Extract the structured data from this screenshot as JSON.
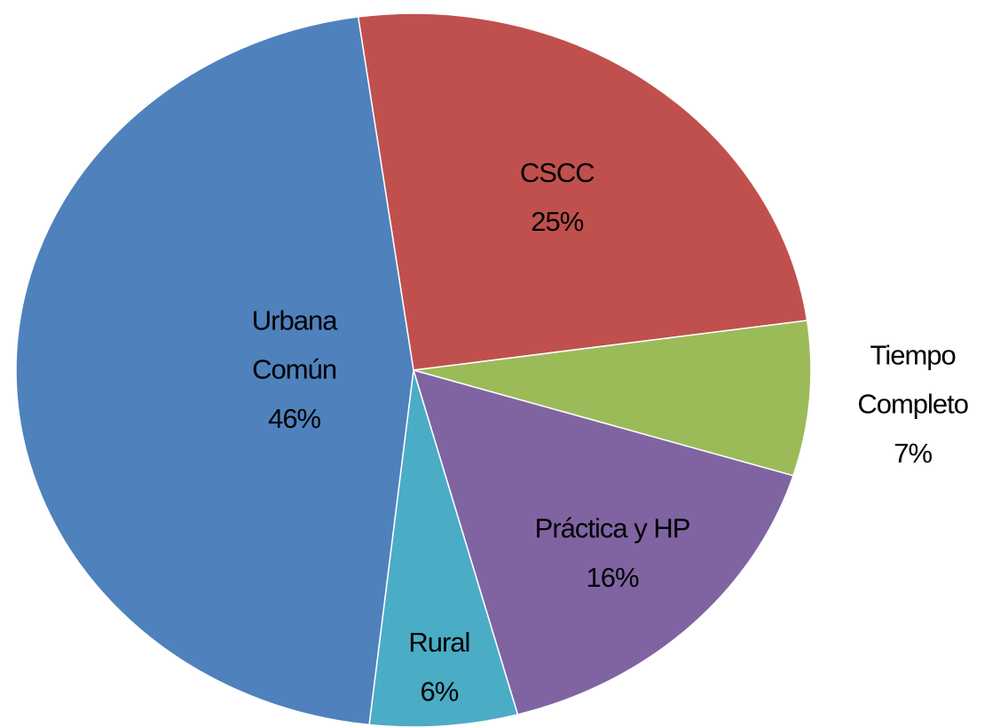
{
  "chart_data": {
    "type": "pie",
    "categories": [
      "CSCC",
      "Tiempo Completo",
      "Práctica y HP",
      "Rural",
      "Urbana Común"
    ],
    "values": [
      25,
      7,
      16,
      6,
      46
    ],
    "value_labels": [
      "25%",
      "7%",
      "16%",
      "6%",
      "46%"
    ],
    "colors": [
      "#c0504d",
      "#9bbb59",
      "#8064a2",
      "#4bacc6",
      "#4f81bd"
    ]
  }
}
